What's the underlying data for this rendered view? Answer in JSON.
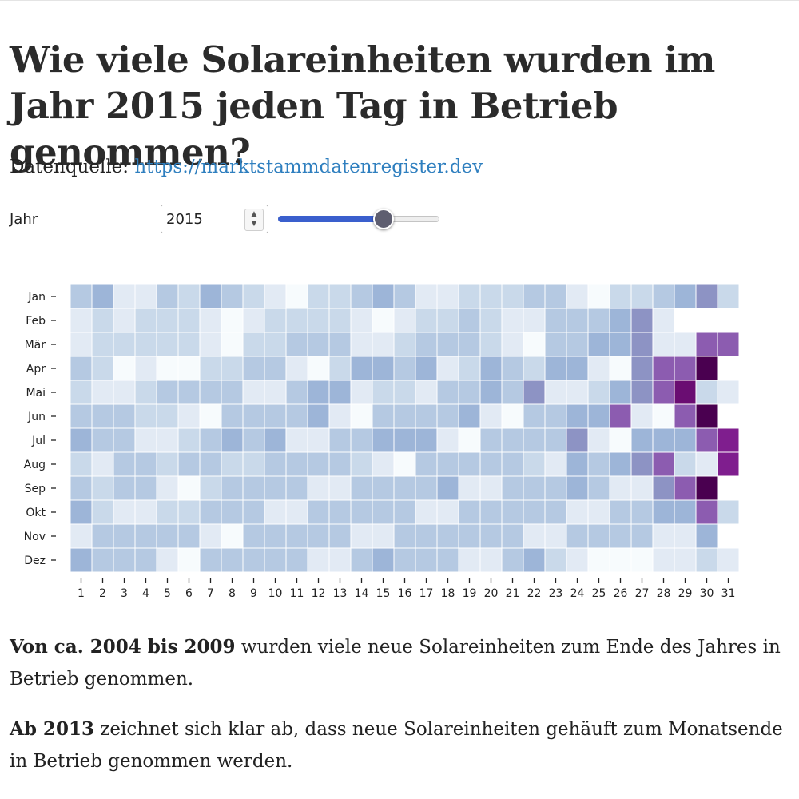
{
  "page": {
    "title": "Wie viele Solareinheiten wurden im Jahr 2015 jeden Tag in Betrieb genommen?",
    "source_label": "Datenquelle:",
    "source_link": "https://marktstammdatenregister.dev"
  },
  "controls": {
    "year_label": "Jahr",
    "year_value": "2015",
    "slider_value": 2015,
    "slider_min": 2000,
    "slider_max": 2023
  },
  "paragraphs": [
    {
      "bold": "Von ca. 2004 bis 2009",
      "text": " wurden viele neue Solareinheiten zum Ende des Jahres in Betrieb genommen."
    },
    {
      "bold": "Ab 2013",
      "text": " zeichnet sich klar ab, dass neue Solareinheiten gehäuft zum Monatsende in Betrieb genommen werden."
    }
  ],
  "colors": {
    "scale": [
      "#f7fbfd",
      "#e2eaf4",
      "#c9d9ea",
      "#b5c9e2",
      "#9db5d8",
      "#8d93c4",
      "#8c5cb0",
      "#7f1e8e",
      "#6a0d72",
      "#4a0050"
    ],
    "link": "#2f7fbf",
    "slider_fill": "#3a5fcd",
    "slider_thumb": "#5e5e70"
  },
  "chart_data": {
    "type": "heatmap",
    "x": [
      "1",
      "2",
      "3",
      "4",
      "5",
      "6",
      "7",
      "8",
      "9",
      "10",
      "11",
      "12",
      "13",
      "14",
      "15",
      "16",
      "17",
      "18",
      "19",
      "20",
      "21",
      "22",
      "23",
      "24",
      "25",
      "26",
      "27",
      "28",
      "29",
      "30",
      "31"
    ],
    "y": [
      "Jan",
      "Feb",
      "Mär",
      "Apr",
      "Mai",
      "Jun",
      "Jul",
      "Aug",
      "Sep",
      "Okt",
      "Nov",
      "Dez"
    ],
    "value_scale": "relative intensity 0-9",
    "values": [
      [
        3,
        4,
        1,
        1,
        3,
        2,
        4,
        3,
        2,
        1,
        0,
        2,
        2,
        3,
        4,
        3,
        1,
        1,
        2,
        2,
        2,
        3,
        3,
        1,
        0,
        2,
        2,
        3,
        4,
        5,
        2
      ],
      [
        1,
        2,
        1,
        2,
        2,
        2,
        1,
        0,
        1,
        2,
        2,
        2,
        2,
        1,
        0,
        1,
        2,
        2,
        3,
        2,
        1,
        1,
        3,
        3,
        3,
        4,
        5,
        1,
        null,
        null,
        null
      ],
      [
        1,
        2,
        2,
        2,
        2,
        2,
        1,
        0,
        2,
        2,
        3,
        3,
        3,
        1,
        1,
        2,
        3,
        3,
        3,
        2,
        1,
        0,
        3,
        3,
        4,
        4,
        5,
        1,
        1,
        6,
        6
      ],
      [
        3,
        2,
        0,
        1,
        0,
        0,
        2,
        2,
        3,
        3,
        1,
        0,
        2,
        4,
        4,
        3,
        4,
        1,
        2,
        4,
        3,
        2,
        4,
        4,
        1,
        0,
        5,
        6,
        6,
        9,
        null
      ],
      [
        2,
        1,
        1,
        2,
        3,
        3,
        3,
        3,
        1,
        1,
        3,
        4,
        4,
        1,
        2,
        2,
        1,
        3,
        3,
        4,
        3,
        5,
        1,
        1,
        2,
        4,
        5,
        6,
        8,
        2,
        1
      ],
      [
        3,
        3,
        3,
        2,
        2,
        1,
        0,
        3,
        3,
        3,
        3,
        4,
        1,
        0,
        3,
        3,
        3,
        3,
        4,
        1,
        0,
        3,
        3,
        4,
        4,
        6,
        1,
        0,
        6,
        9,
        null
      ],
      [
        4,
        3,
        3,
        1,
        1,
        2,
        3,
        4,
        3,
        4,
        1,
        1,
        3,
        3,
        4,
        4,
        4,
        1,
        0,
        3,
        3,
        3,
        3,
        5,
        1,
        0,
        4,
        4,
        4,
        6,
        7
      ],
      [
        2,
        1,
        3,
        3,
        2,
        3,
        3,
        2,
        2,
        3,
        3,
        3,
        3,
        2,
        1,
        0,
        3,
        3,
        3,
        3,
        3,
        2,
        1,
        4,
        3,
        4,
        5,
        6,
        2,
        1,
        7
      ],
      [
        3,
        2,
        3,
        3,
        1,
        0,
        2,
        3,
        3,
        3,
        3,
        1,
        1,
        3,
        3,
        3,
        3,
        4,
        1,
        1,
        3,
        3,
        3,
        4,
        3,
        1,
        1,
        5,
        6,
        9,
        null
      ],
      [
        4,
        2,
        1,
        1,
        2,
        2,
        3,
        3,
        3,
        1,
        1,
        3,
        3,
        3,
        3,
        3,
        1,
        1,
        3,
        3,
        3,
        3,
        3,
        1,
        1,
        3,
        3,
        4,
        4,
        6,
        2
      ],
      [
        1,
        3,
        3,
        3,
        3,
        3,
        1,
        0,
        3,
        3,
        3,
        3,
        3,
        1,
        1,
        3,
        3,
        3,
        3,
        3,
        3,
        1,
        1,
        3,
        3,
        3,
        3,
        1,
        1,
        4,
        null
      ],
      [
        4,
        3,
        3,
        3,
        1,
        0,
        3,
        3,
        3,
        3,
        3,
        1,
        1,
        3,
        4,
        3,
        3,
        3,
        1,
        1,
        3,
        4,
        2,
        1,
        0,
        0,
        0,
        1,
        1,
        2,
        1
      ]
    ]
  }
}
